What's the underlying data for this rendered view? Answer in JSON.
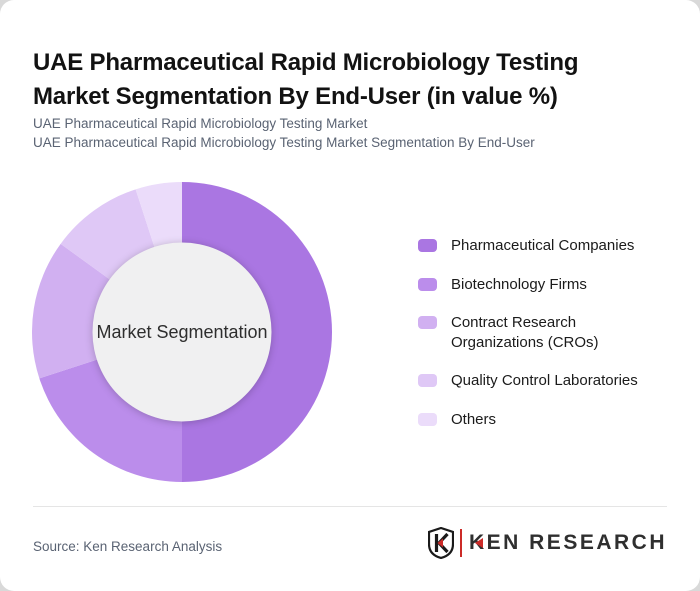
{
  "page": {
    "title": "UAE Pharmaceutical Rapid Microbiology Testing Market Segmentation By End-User (in value %)",
    "subtitle_line1": "UAE Pharmaceutical Rapid Microbiology Testing Market",
    "subtitle_line2": "UAE Pharmaceutical Rapid Microbiology Testing Market Segmentation By End-User",
    "source": "Source: Ken Research Analysis",
    "logo_text": "KEN RESEARCH",
    "logo_accent_color": "#cc2b28",
    "card_background": "#ffffff",
    "page_background": "#d9d9d9"
  },
  "chart_data": {
    "type": "pie",
    "subtype": "donut",
    "title": "UAE Pharmaceutical Rapid Microbiology Testing Market Segmentation By End-User (in value %)",
    "center_label": "Market Segmentation",
    "unit": "%",
    "start_angle_deg": 0,
    "direction": "clockwise",
    "legend_position": "right",
    "hole_color": "#f0f0f1",
    "outer_radius_px": 150,
    "inner_radius_px": 89,
    "series": [
      {
        "name": "Pharmaceutical Companies",
        "value": 50,
        "color": "#aa76e2"
      },
      {
        "name": "Biotechnology Firms",
        "value": 20,
        "color": "#bb8deb"
      },
      {
        "name": "Contract Research Organizations (CROs)",
        "value": 15,
        "color": "#d1b0f1"
      },
      {
        "name": "Quality Control Laboratories",
        "value": 10,
        "color": "#dfc8f6"
      },
      {
        "name": "Others",
        "value": 5,
        "color": "#ebdcfa"
      }
    ]
  }
}
